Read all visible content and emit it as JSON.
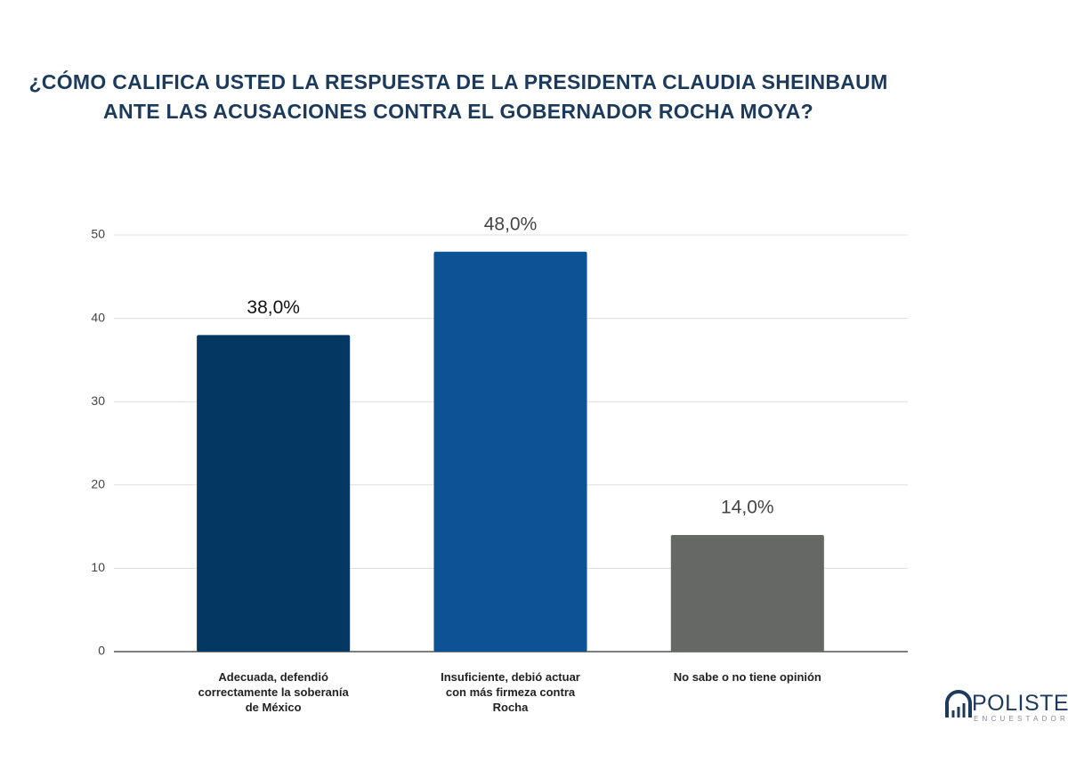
{
  "chart_data": {
    "type": "bar",
    "title": "¿CÓMO CALIFICA USTED LA RESPUESTA DE LA PRESIDENTA CLAUDIA SHEINBAUM ANTE LAS ACUSACIONES CONTRA EL GOBERNADOR ROCHA MOYA?",
    "categories": [
      "Adecuada, defendió correctamente la soberanía de México",
      "Insuficiente, debió actuar con más firmeza contra Rocha",
      "No sabe o no tiene opinión"
    ],
    "series": [
      {
        "values": [
          38,
          48,
          14
        ],
        "value_labels": [
          "38,0%",
          "48,0%",
          "14,0%"
        ],
        "colors": [
          "#053763",
          "#0b5394",
          "#666865"
        ]
      }
    ],
    "ylim": [
      0,
      50
    ],
    "yticks": [
      0,
      10,
      20,
      30,
      40,
      50
    ],
    "grid": true,
    "logo": {
      "name": "POLISTER",
      "tagline": "ENCUESTADORA"
    }
  }
}
